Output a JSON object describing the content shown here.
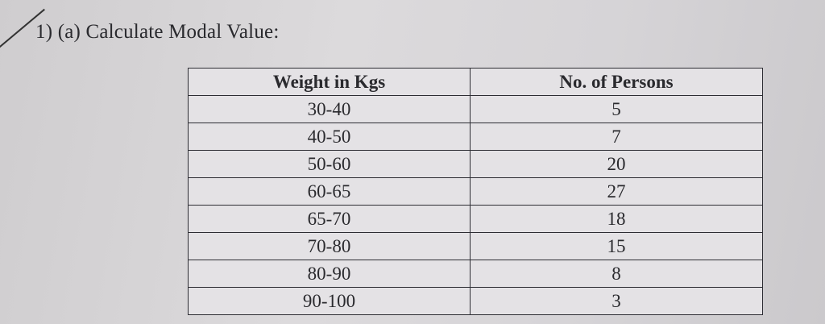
{
  "question": {
    "number": "1)",
    "text": "(a) Calculate Modal Value:"
  },
  "table": {
    "headers": [
      "Weight in Kgs",
      "No. of Persons"
    ],
    "rows": [
      [
        "30-40",
        "5"
      ],
      [
        "40-50",
        "7"
      ],
      [
        "50-60",
        "20"
      ],
      [
        "60-65",
        "27"
      ],
      [
        "65-70",
        "18"
      ],
      [
        "70-80",
        "15"
      ],
      [
        "80-90",
        "8"
      ],
      [
        "90-100",
        "3"
      ]
    ]
  }
}
